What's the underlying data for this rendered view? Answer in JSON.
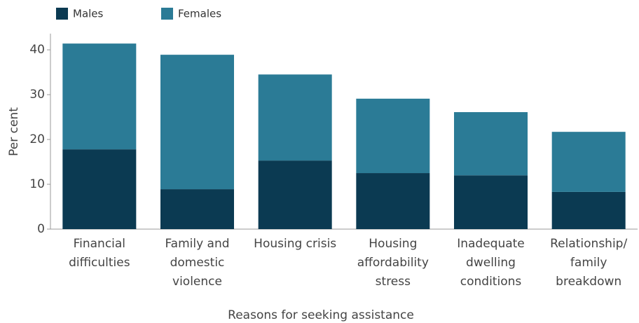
{
  "chart_data": {
    "type": "stacked_bar",
    "categories": [
      [
        "Financial",
        "difficulties"
      ],
      [
        "Family and",
        "domestic",
        "violence"
      ],
      [
        "Housing crisis"
      ],
      [
        "Housing",
        "affordability",
        "stress"
      ],
      [
        "Inadequate",
        "dwelling",
        "conditions"
      ],
      [
        "Relationship/",
        "family",
        "breakdown"
      ]
    ],
    "series": [
      {
        "name": "Males",
        "color": "#0b3a52",
        "values": [
          17.8,
          8.9,
          15.3,
          12.5,
          12.0,
          8.3
        ]
      },
      {
        "name": "Females",
        "color": "#2b7b96",
        "values": [
          23.6,
          30.0,
          19.2,
          16.6,
          14.1,
          13.4
        ]
      }
    ],
    "y_label": "Per cent",
    "x_label": "Reasons for seeking assistance",
    "ylim": [
      0,
      43.3
    ],
    "yticks": [
      0,
      10,
      20,
      30,
      40
    ]
  }
}
